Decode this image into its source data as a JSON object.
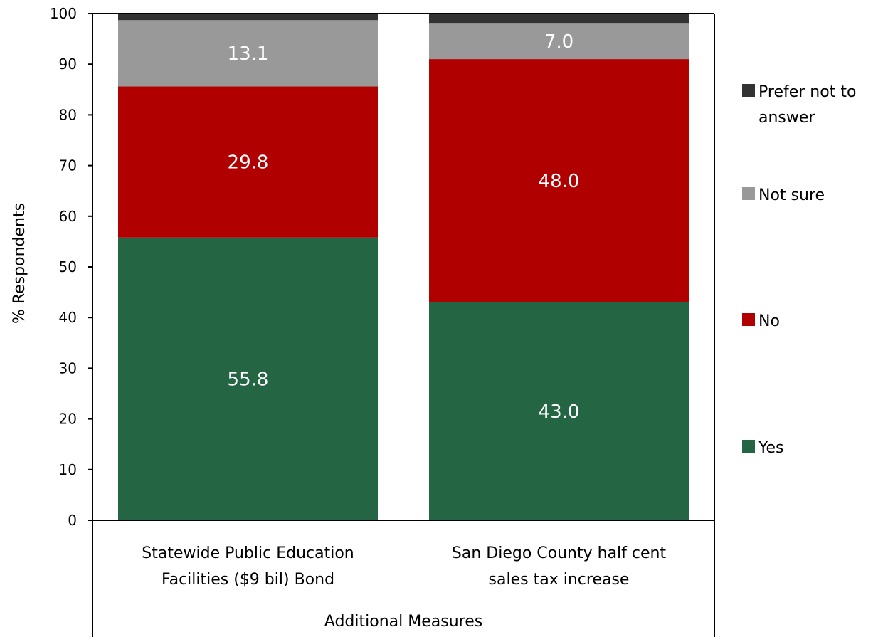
{
  "chart_data": {
    "type": "bar",
    "stacked": true,
    "title": "",
    "ylabel": "% Respondents",
    "xlabel": "Additional Measures",
    "ylim": [
      0,
      100
    ],
    "yticks": [
      0,
      10,
      20,
      30,
      40,
      50,
      60,
      70,
      80,
      90,
      100
    ],
    "categories": [
      [
        "Statewide Public Education",
        "Facilities ($9 bil) Bond"
      ],
      [
        "San Diego County half cent",
        "sales tax increase"
      ]
    ],
    "series": [
      {
        "name": "Yes",
        "color": "#246644",
        "values": [
          55.8,
          43.0
        ],
        "show_labels": true
      },
      {
        "name": "No",
        "color": "#b10000",
        "values": [
          29.8,
          48.0
        ],
        "show_labels": true
      },
      {
        "name": "Not sure",
        "color": "#999999",
        "values": [
          13.1,
          7.0
        ],
        "show_labels": true
      },
      {
        "name": "Prefer not to answer",
        "color": "#333333",
        "values": [
          1.3,
          2.0
        ],
        "show_labels": false
      }
    ],
    "legend": {
      "position": "right",
      "order": [
        3,
        2,
        1,
        0
      ],
      "labels": [
        [
          "Prefer not to",
          "answer"
        ],
        [
          "Not sure"
        ],
        [
          "No"
        ],
        [
          "Yes"
        ]
      ]
    },
    "grid": false
  }
}
